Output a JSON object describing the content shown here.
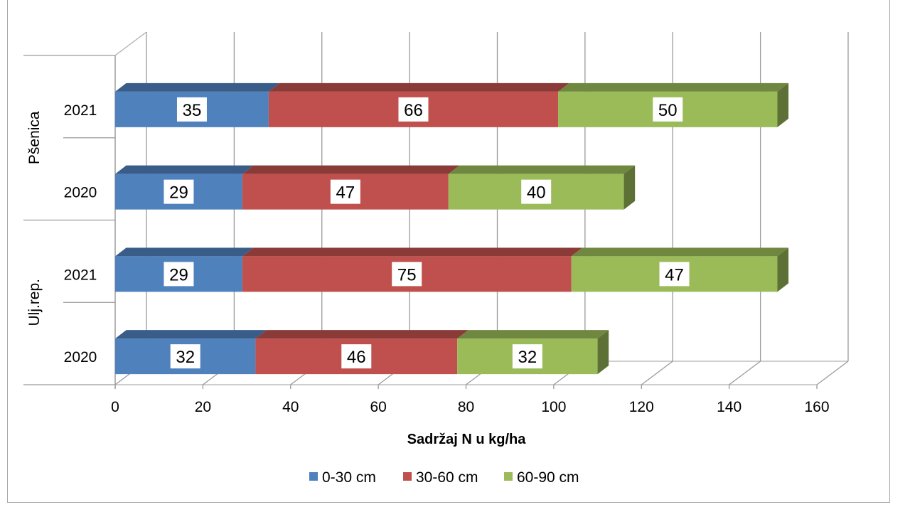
{
  "chart_data": {
    "type": "bar",
    "orientation": "horizontal",
    "stacked": true,
    "style": "3d",
    "title": "",
    "xlabel": "Sadržaj N u kg/ha",
    "ylabel": "",
    "xlim": [
      0,
      160
    ],
    "x_ticks": [
      "0",
      "20",
      "40",
      "60",
      "80",
      "100",
      "120",
      "140",
      "160"
    ],
    "grid": true,
    "legend_position": "bottom",
    "groups": [
      {
        "name": "Pšenica",
        "categories": [
          "2021",
          "2020"
        ]
      },
      {
        "name": "Ulj.rep.",
        "categories": [
          "2021",
          "2020"
        ]
      }
    ],
    "categories": [
      "Pšenica 2021",
      "Pšenica 2020",
      "Ulj.rep. 2021",
      "Ulj.rep. 2020"
    ],
    "series": [
      {
        "name": "0-30 cm",
        "color": "#4f81bd",
        "values": [
          35,
          29,
          29,
          32
        ]
      },
      {
        "name": "30-60 cm",
        "color": "#c0504d",
        "values": [
          66,
          47,
          75,
          46
        ]
      },
      {
        "name": "60-90 cm",
        "color": "#9bbb59",
        "values": [
          50,
          40,
          47,
          32
        ]
      }
    ]
  }
}
